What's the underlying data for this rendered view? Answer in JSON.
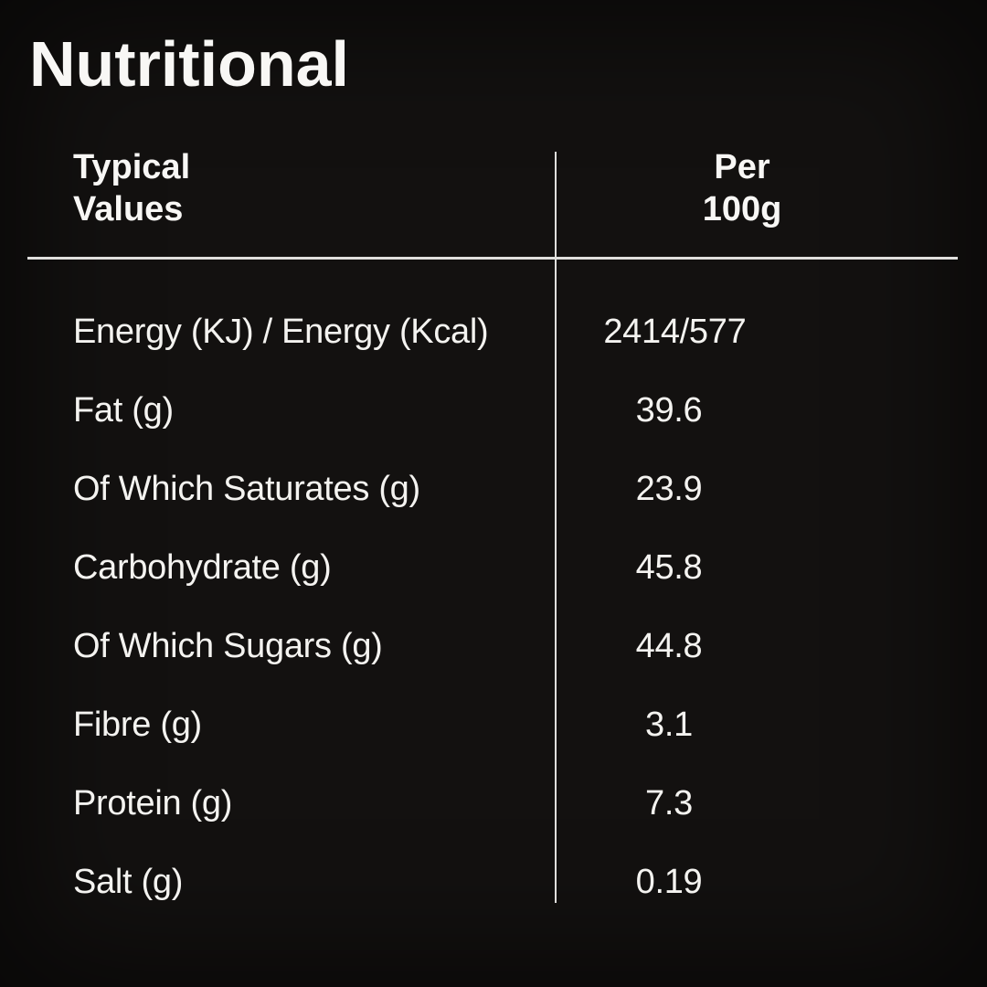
{
  "page": {
    "background_color": "#131110",
    "text_color": "#f6f5f2",
    "line_color": "#e0dfdd"
  },
  "title": "Nutritional",
  "table": {
    "header": {
      "col1_line1": "Typical",
      "col1_line2": "Values",
      "col2_line1": "Per",
      "col2_line2": "100g"
    },
    "rows": [
      {
        "label": "Energy (KJ) / Energy (Kcal)",
        "value": "2414/577"
      },
      {
        "label": "Fat (g)",
        "value": "39.6"
      },
      {
        "label": "Of Which Saturates (g)",
        "value": "23.9"
      },
      {
        "label": "Carbohydrate (g)",
        "value": "45.8"
      },
      {
        "label": "Of Which Sugars (g)",
        "value": "44.8"
      },
      {
        "label": "Fibre (g)",
        "value": "3.1"
      },
      {
        "label": "Protein (g)",
        "value": "7.3"
      },
      {
        "label": "Salt (g)",
        "value": "0.19"
      }
    ]
  }
}
